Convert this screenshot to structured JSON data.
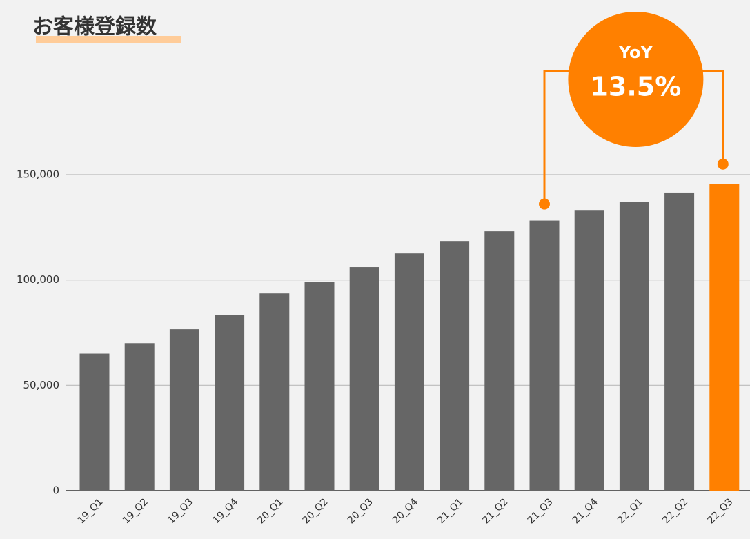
{
  "chart_data": {
    "type": "bar",
    "title": "お客様登録数",
    "categories": [
      "19_Q1",
      "19_Q2",
      "19_Q3",
      "19_Q4",
      "20_Q1",
      "20_Q2",
      "20_Q3",
      "20_Q4",
      "21_Q1",
      "21_Q2",
      "21_Q3",
      "21_Q4",
      "22_Q1",
      "22_Q2",
      "22_Q3"
    ],
    "values": [
      65000,
      70000,
      76600,
      83500,
      93600,
      99200,
      106100,
      112600,
      118500,
      123100,
      128200,
      132900,
      137200,
      141500,
      145500
    ],
    "colors": [
      "#666666",
      "#666666",
      "#666666",
      "#666666",
      "#666666",
      "#666666",
      "#666666",
      "#666666",
      "#666666",
      "#666666",
      "#666666",
      "#666666",
      "#666666",
      "#666666",
      "#ff8000"
    ],
    "ylim": [
      0,
      150000
    ],
    "yticks": [
      0,
      {
        "value": 50000,
        "label": "50,000"
      },
      {
        "value": 100000,
        "label": "100,000"
      },
      {
        "value": 150000,
        "label": "150,000"
      }
    ],
    "grid": true,
    "annotation": {
      "label": "YoY",
      "value": "13.5%",
      "color": "#ff8000"
    }
  }
}
